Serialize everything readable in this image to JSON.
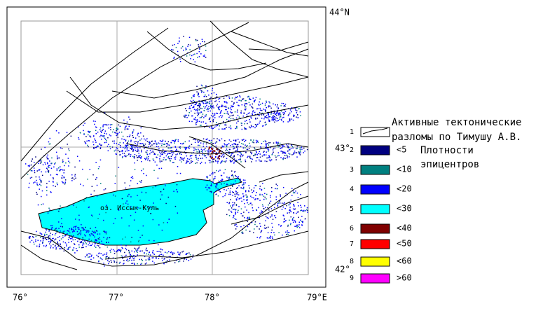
{
  "map": {
    "lat_labels": [
      "44°N",
      "43°",
      "42°"
    ],
    "lon_labels": [
      "76°",
      "77°",
      "78°",
      "79°E"
    ],
    "lake_label": "оз. Иссык-Куль"
  },
  "legend": {
    "items": [
      {
        "number": "1",
        "lines": [
          "Активные тектонические",
          "разломы по Тимушу А.В."
        ],
        "color": "#ffffff"
      },
      {
        "number": "2",
        "label": "<5",
        "color": "#000080"
      },
      {
        "number": "3",
        "label": "<10",
        "color": "#008080"
      },
      {
        "number": "4",
        "label": "<20",
        "color": "#0000ff"
      },
      {
        "number": "5",
        "label": "<30",
        "color": "#00ffff"
      },
      {
        "number": "6",
        "label": "<40",
        "color": "#800000"
      },
      {
        "number": "7",
        "label": "<50",
        "color": "#ff0000"
      },
      {
        "number": "8",
        "label": "<60",
        "color": "#ffff00"
      },
      {
        "number": "9",
        "label": ">60",
        "color": "#ff00ff"
      }
    ],
    "density_title": [
      "Плотности",
      "эпицентров"
    ]
  }
}
